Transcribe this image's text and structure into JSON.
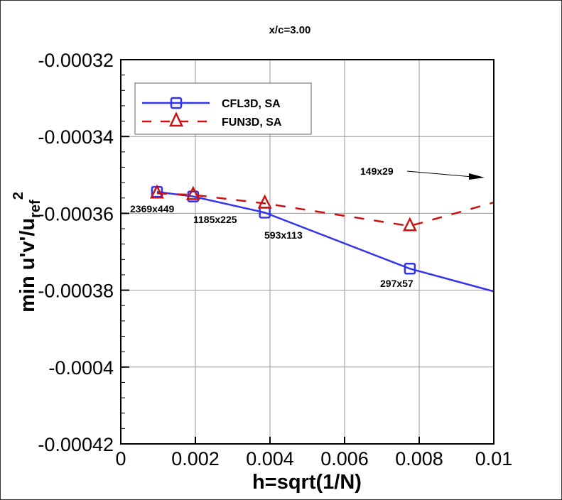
{
  "chart_data": {
    "type": "line",
    "title": "x/c=3.00",
    "xlabel": "h=sqrt(1/N)",
    "ylabel": {
      "main": "min u'v'/u",
      "subscript": "ref",
      "superscript": "2"
    },
    "xlim": [
      0,
      0.01
    ],
    "ylim": [
      -0.00042,
      -0.00032
    ],
    "xticks": [
      "0",
      "0.002",
      "0.004",
      "0.006",
      "0.008",
      "0.01"
    ],
    "yticks": [
      "-0.00032",
      "-0.00034",
      "-0.00036",
      "-0.00038",
      "-0.0004",
      "-0.00042"
    ],
    "grid": true,
    "legend_position": "top-left",
    "series": [
      {
        "name": "CFL3D, SA",
        "color": "#3333ee",
        "style": "solid",
        "marker": "square",
        "x": [
          0.00097,
          0.00194,
          0.00386,
          0.00775,
          0.0152
        ],
        "y": [
          -0.0003544,
          -0.0003556,
          -0.0003598,
          -0.0003744,
          -0.000394
        ]
      },
      {
        "name": "FUN3D, SA",
        "color": "#cc1111",
        "style": "dashed",
        "marker": "triangle",
        "x": [
          0.00097,
          0.00194,
          0.00386,
          0.00775,
          0.0152
        ],
        "y": [
          -0.0003548,
          -0.0003552,
          -0.0003574,
          -0.0003633,
          -0.000343
        ]
      }
    ],
    "annotations": [
      {
        "text": "2369x449",
        "x": 0.00097,
        "y": -0.0003544
      },
      {
        "text": "1185x225",
        "x": 0.00194,
        "y": -0.0003556
      },
      {
        "text": "593x113",
        "x": 0.00386,
        "y": -0.0003598
      },
      {
        "text": "297x57",
        "x": 0.00775,
        "y": -0.0003744
      },
      {
        "text": "149x29",
        "x": 0.0152,
        "y": null,
        "arrow": "right"
      }
    ]
  }
}
